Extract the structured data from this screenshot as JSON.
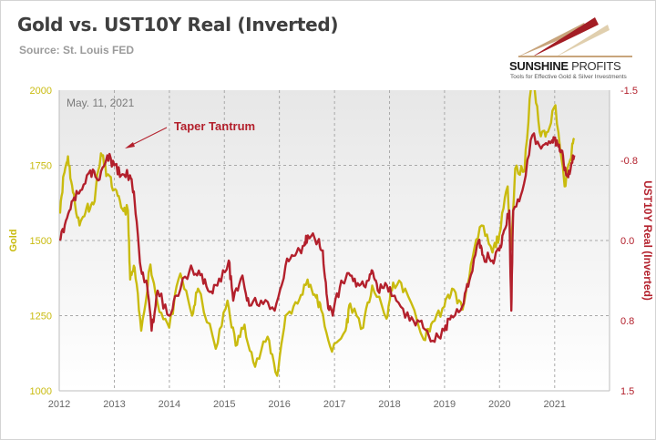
{
  "header": {
    "title": "Gold vs. UST10Y Real (Inverted)",
    "source": "Source: St. Louis FED"
  },
  "logo": {
    "name_bold": "SUNSHINE",
    "name_light": " PROFITS",
    "tagline": "Tools for Effective Gold & Silver Investments"
  },
  "colors": {
    "gold": "#c9bb0f",
    "real_yield": "#b3202c",
    "annotation": "#b3202c",
    "logo_accent": "#a31d24",
    "logo_accent_light": "#c8a57c"
  },
  "chart_data": {
    "type": "line",
    "date_label": "May. 11, 2021",
    "annotation": "Taper Tantrum",
    "x_tick_labels": [
      "2012",
      "2013",
      "2014",
      "2015",
      "2016",
      "2017",
      "2018",
      "2019",
      "2020",
      "2021"
    ],
    "xlim": [
      "2012-01-01",
      "2021-12-31"
    ],
    "left_axis": {
      "label": "Gold",
      "ticks": [
        2000,
        1750,
        1500,
        1250,
        1000
      ],
      "ylim": [
        1000,
        2000
      ]
    },
    "right_axis": {
      "label": "UST10Y Real (Inverted)",
      "ticks": [
        -1.5,
        -0.8,
        0.0,
        0.8,
        1.5
      ],
      "ylim_top": -1.5,
      "ylim_bottom": 1.5,
      "inverted": true
    },
    "grid": true,
    "series": [
      {
        "axis": "left",
        "color": "#c9bb0f",
        "points": [
          [
            "2012-01-03",
            1590
          ],
          [
            "2012-02-01",
            1720
          ],
          [
            "2012-02-28",
            1780
          ],
          [
            "2012-04-01",
            1660
          ],
          [
            "2012-05-15",
            1550
          ],
          [
            "2012-07-01",
            1610
          ],
          [
            "2012-08-15",
            1620
          ],
          [
            "2012-10-04",
            1790
          ],
          [
            "2012-11-15",
            1720
          ],
          [
            "2012-12-31",
            1670
          ],
          [
            "2013-02-15",
            1610
          ],
          [
            "2013-04-01",
            1600
          ],
          [
            "2013-04-16",
            1370
          ],
          [
            "2013-05-15",
            1410
          ],
          [
            "2013-06-28",
            1200
          ],
          [
            "2013-08-28",
            1420
          ],
          [
            "2013-10-15",
            1290
          ],
          [
            "2013-12-31",
            1210
          ],
          [
            "2014-03-15",
            1390
          ],
          [
            "2014-06-01",
            1250
          ],
          [
            "2014-07-10",
            1340
          ],
          [
            "2014-11-05",
            1140
          ],
          [
            "2015-01-22",
            1300
          ],
          [
            "2015-03-17",
            1150
          ],
          [
            "2015-05-15",
            1220
          ],
          [
            "2015-07-24",
            1080
          ],
          [
            "2015-10-15",
            1180
          ],
          [
            "2015-12-17",
            1050
          ],
          [
            "2016-02-11",
            1250
          ],
          [
            "2016-05-01",
            1290
          ],
          [
            "2016-07-06",
            1370
          ],
          [
            "2016-09-01",
            1310
          ],
          [
            "2016-10-04",
            1270
          ],
          [
            "2016-12-15",
            1130
          ],
          [
            "2017-03-15",
            1200
          ],
          [
            "2017-04-15",
            1290
          ],
          [
            "2017-07-10",
            1210
          ],
          [
            "2017-09-08",
            1350
          ],
          [
            "2017-12-12",
            1240
          ],
          [
            "2018-01-25",
            1360
          ],
          [
            "2018-04-15",
            1340
          ],
          [
            "2018-08-16",
            1170
          ],
          [
            "2018-10-15",
            1230
          ],
          [
            "2018-12-31",
            1280
          ],
          [
            "2019-02-20",
            1340
          ],
          [
            "2019-05-01",
            1270
          ],
          [
            "2019-06-25",
            1420
          ],
          [
            "2019-09-04",
            1550
          ],
          [
            "2019-11-15",
            1460
          ],
          [
            "2019-12-31",
            1520
          ],
          [
            "2020-02-24",
            1680
          ],
          [
            "2020-03-19",
            1470
          ],
          [
            "2020-04-14",
            1740
          ],
          [
            "2020-06-15",
            1730
          ],
          [
            "2020-08-06",
            2070
          ],
          [
            "2020-09-24",
            1860
          ],
          [
            "2020-11-09",
            1860
          ],
          [
            "2021-01-06",
            1950
          ],
          [
            "2021-03-08",
            1680
          ],
          [
            "2021-04-15",
            1770
          ],
          [
            "2021-05-11",
            1840
          ]
        ]
      },
      {
        "axis": "right",
        "color": "#b3202c",
        "points": [
          [
            "2012-01-03",
            0.0
          ],
          [
            "2012-02-15",
            -0.2
          ],
          [
            "2012-04-01",
            -0.4
          ],
          [
            "2012-05-20",
            -0.5
          ],
          [
            "2012-07-25",
            -0.7
          ],
          [
            "2012-09-15",
            -0.6
          ],
          [
            "2012-11-15",
            -0.85
          ],
          [
            "2012-12-31",
            -0.75
          ],
          [
            "2013-02-15",
            -0.65
          ],
          [
            "2013-04-15",
            -0.65
          ],
          [
            "2013-05-15",
            -0.4
          ],
          [
            "2013-06-28",
            0.3
          ],
          [
            "2013-08-01",
            0.4
          ],
          [
            "2013-09-05",
            0.9
          ],
          [
            "2013-10-15",
            0.5
          ],
          [
            "2013-12-31",
            0.75
          ],
          [
            "2014-02-15",
            0.55
          ],
          [
            "2014-05-15",
            0.3
          ],
          [
            "2014-07-15",
            0.3
          ],
          [
            "2014-09-15",
            0.5
          ],
          [
            "2014-11-15",
            0.45
          ],
          [
            "2015-01-30",
            0.2
          ],
          [
            "2015-03-01",
            0.6
          ],
          [
            "2015-05-01",
            0.35
          ],
          [
            "2015-06-15",
            0.65
          ],
          [
            "2015-09-01",
            0.6
          ],
          [
            "2015-12-01",
            0.7
          ],
          [
            "2016-02-11",
            0.25
          ],
          [
            "2016-04-15",
            0.15
          ],
          [
            "2016-06-15",
            0.05
          ],
          [
            "2016-07-08",
            -0.05
          ],
          [
            "2016-09-15",
            0.0
          ],
          [
            "2016-10-15",
            0.1
          ],
          [
            "2016-11-15",
            0.6
          ],
          [
            "2016-12-20",
            0.75
          ],
          [
            "2017-02-15",
            0.4
          ],
          [
            "2017-04-15",
            0.35
          ],
          [
            "2017-06-15",
            0.45
          ],
          [
            "2017-08-15",
            0.4
          ],
          [
            "2017-09-08",
            0.3
          ],
          [
            "2017-10-15",
            0.5
          ],
          [
            "2017-12-15",
            0.45
          ],
          [
            "2018-02-15",
            0.6
          ],
          [
            "2018-05-15",
            0.8
          ],
          [
            "2018-08-01",
            0.8
          ],
          [
            "2018-10-15",
            1.0
          ],
          [
            "2018-12-31",
            0.9
          ],
          [
            "2019-02-15",
            0.75
          ],
          [
            "2019-05-01",
            0.65
          ],
          [
            "2019-06-15",
            0.4
          ],
          [
            "2019-08-15",
            0.0
          ],
          [
            "2019-09-15",
            0.15
          ],
          [
            "2019-11-15",
            0.2
          ],
          [
            "2019-12-31",
            0.1
          ],
          [
            "2020-01-31",
            -0.1
          ],
          [
            "2020-03-06",
            -0.3
          ],
          [
            "2020-03-19",
            0.7
          ],
          [
            "2020-04-01",
            -0.3
          ],
          [
            "2020-06-01",
            -0.5
          ],
          [
            "2020-08-06",
            -1.05
          ],
          [
            "2020-10-15",
            -0.95
          ],
          [
            "2020-12-15",
            -1.0
          ],
          [
            "2021-01-15",
            -1.0
          ],
          [
            "2021-02-15",
            -0.9
          ],
          [
            "2021-03-18",
            -0.65
          ],
          [
            "2021-04-15",
            -0.7
          ],
          [
            "2021-05-11",
            -0.85
          ]
        ]
      }
    ]
  }
}
